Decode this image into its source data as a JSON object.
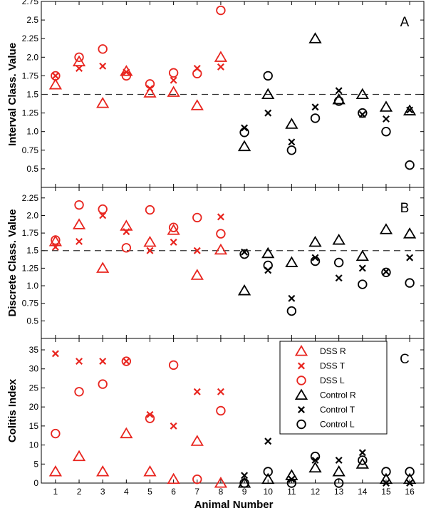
{
  "colors": {
    "dss": "#e8251f",
    "control": "#000000",
    "dashed": "#333333"
  },
  "x_label": "Animal Number",
  "chart_data": [
    {
      "type": "scatter",
      "panel": "A",
      "ylabel": "Interval Class. Value",
      "xlim": [
        0.4,
        16.6
      ],
      "ylim": [
        0.25,
        2.75
      ],
      "yticks": [
        "0.5",
        "0.75",
        "1.0",
        "1.25",
        "1.5",
        "1.75",
        "2.0",
        "2.25",
        "2.5",
        "2.75"
      ],
      "xticks": [],
      "threshold": 1.5,
      "series": [
        {
          "name": "DSS R",
          "group": "dss",
          "marker": "triangle",
          "x": [
            1,
            2,
            3,
            4,
            5,
            6,
            7,
            8
          ],
          "y": [
            1.63,
            1.94,
            1.38,
            1.81,
            1.52,
            1.53,
            1.35,
            2.0
          ]
        },
        {
          "name": "DSS T",
          "group": "dss",
          "marker": "cross",
          "x": [
            1,
            2,
            3,
            4,
            5,
            6,
            7,
            8
          ],
          "y": [
            1.75,
            1.85,
            1.88,
            1.8,
            1.58,
            1.69,
            1.85,
            1.87
          ]
        },
        {
          "name": "DSS L",
          "group": "dss",
          "marker": "circle",
          "x": [
            1,
            2,
            3,
            4,
            5,
            6,
            7,
            8
          ],
          "y": [
            1.75,
            2.0,
            2.11,
            1.75,
            1.64,
            1.79,
            1.78,
            2.63
          ]
        },
        {
          "name": "Control R",
          "group": "control",
          "marker": "triangle",
          "x": [
            9,
            10,
            11,
            12,
            13,
            14,
            15,
            16
          ],
          "y": [
            0.8,
            1.5,
            1.1,
            2.25,
            1.43,
            1.5,
            1.33,
            1.28
          ]
        },
        {
          "name": "Control T",
          "group": "control",
          "marker": "cross",
          "x": [
            9,
            10,
            11,
            12,
            13,
            14,
            15,
            16
          ],
          "y": [
            1.05,
            1.25,
            0.86,
            1.33,
            1.55,
            1.23,
            1.17,
            1.29
          ]
        },
        {
          "name": "Control L",
          "group": "control",
          "marker": "circle",
          "x": [
            9,
            10,
            11,
            12,
            13,
            14,
            15,
            16
          ],
          "y": [
            0.99,
            1.75,
            0.75,
            1.18,
            1.41,
            1.25,
            1.0,
            0.55
          ]
        }
      ]
    },
    {
      "type": "scatter",
      "panel": "B",
      "ylabel": "Discrete Class. Value",
      "xlim": [
        0.4,
        16.6
      ],
      "ylim": [
        0.25,
        2.4
      ],
      "yticks": [
        "0.5",
        "0.75",
        "1.0",
        "1.25",
        "1.5",
        "1.75",
        "2.0",
        "2.25"
      ],
      "xticks": [],
      "threshold": 1.5,
      "series": [
        {
          "name": "DSS R",
          "group": "dss",
          "marker": "triangle",
          "x": [
            1,
            2,
            3,
            4,
            5,
            6,
            7,
            8
          ],
          "y": [
            1.63,
            1.87,
            1.25,
            1.85,
            1.62,
            1.79,
            1.15,
            1.51
          ]
        },
        {
          "name": "DSS T",
          "group": "dss",
          "marker": "cross",
          "x": [
            1,
            2,
            3,
            4,
            5,
            6,
            7,
            8
          ],
          "y": [
            1.55,
            1.63,
            2.0,
            1.77,
            1.5,
            1.62,
            1.5,
            1.98
          ]
        },
        {
          "name": "DSS L",
          "group": "dss",
          "marker": "circle",
          "x": [
            1,
            2,
            3,
            4,
            5,
            6,
            7,
            8
          ],
          "y": [
            1.65,
            2.15,
            2.09,
            1.54,
            2.08,
            1.83,
            1.97,
            1.74
          ]
        },
        {
          "name": "Control R",
          "group": "control",
          "marker": "triangle",
          "x": [
            9,
            10,
            11,
            12,
            13,
            14,
            15,
            16
          ],
          "y": [
            0.93,
            1.46,
            1.33,
            1.62,
            1.65,
            1.42,
            1.8,
            1.74
          ]
        },
        {
          "name": "Control T",
          "group": "control",
          "marker": "cross",
          "x": [
            9,
            10,
            11,
            12,
            13,
            14,
            15,
            16
          ],
          "y": [
            1.48,
            1.22,
            0.82,
            1.4,
            1.11,
            1.25,
            1.2,
            1.4
          ]
        },
        {
          "name": "Control L",
          "group": "control",
          "marker": "circle",
          "x": [
            9,
            10,
            11,
            12,
            13,
            14,
            15,
            16
          ],
          "y": [
            1.45,
            1.29,
            0.64,
            1.35,
            1.33,
            1.02,
            1.19,
            1.04
          ]
        }
      ]
    },
    {
      "type": "scatter",
      "panel": "C",
      "ylabel": "Colitis Index",
      "xlim": [
        0.4,
        16.6
      ],
      "ylim": [
        0,
        38
      ],
      "yticks": [
        "0",
        "5",
        "10",
        "15",
        "20",
        "25",
        "30",
        "35"
      ],
      "xticks": [
        "1",
        "2",
        "3",
        "4",
        "5",
        "6",
        "7",
        "8",
        "9",
        "10",
        "11",
        "12",
        "13",
        "14",
        "15",
        "16"
      ],
      "series": [
        {
          "name": "DSS R",
          "group": "dss",
          "marker": "triangle",
          "x": [
            1,
            2,
            3,
            4,
            5,
            6,
            7,
            8
          ],
          "y": [
            3,
            7,
            3,
            13,
            3,
            1,
            11,
            0
          ]
        },
        {
          "name": "DSS T",
          "group": "dss",
          "marker": "cross",
          "x": [
            1,
            2,
            3,
            4,
            5,
            6,
            7,
            8
          ],
          "y": [
            34,
            32,
            32,
            32,
            18,
            15,
            24,
            24
          ]
        },
        {
          "name": "DSS L",
          "group": "dss",
          "marker": "circle",
          "x": [
            1,
            2,
            3,
            4,
            5,
            6,
            7,
            8
          ],
          "y": [
            13,
            24,
            26,
            32,
            17,
            31,
            1,
            19
          ]
        },
        {
          "name": "Control R",
          "group": "control",
          "marker": "triangle",
          "x": [
            9,
            10,
            11,
            12,
            13,
            14,
            15,
            16
          ],
          "y": [
            0,
            1,
            2,
            4,
            3,
            5,
            1,
            1
          ]
        },
        {
          "name": "Control T",
          "group": "control",
          "marker": "cross",
          "x": [
            9,
            10,
            11,
            12,
            13,
            14,
            15,
            16
          ],
          "y": [
            2,
            11,
            1,
            6,
            6,
            8,
            0,
            0
          ]
        },
        {
          "name": "Control L",
          "group": "control",
          "marker": "circle",
          "x": [
            9,
            10,
            11,
            12,
            13,
            14,
            15,
            16
          ],
          "y": [
            0,
            3,
            0,
            7,
            0,
            6,
            3,
            3
          ]
        }
      ],
      "legend": {
        "position": "top-right",
        "entries": [
          {
            "label": "DSS R",
            "group": "dss",
            "marker": "triangle"
          },
          {
            "label": "DSS T",
            "group": "dss",
            "marker": "cross"
          },
          {
            "label": "DSS L",
            "group": "dss",
            "marker": "circle"
          },
          {
            "label": "Control R",
            "group": "control",
            "marker": "triangle"
          },
          {
            "label": "Control T",
            "group": "control",
            "marker": "cross"
          },
          {
            "label": "Control L",
            "group": "control",
            "marker": "circle"
          }
        ]
      }
    }
  ]
}
